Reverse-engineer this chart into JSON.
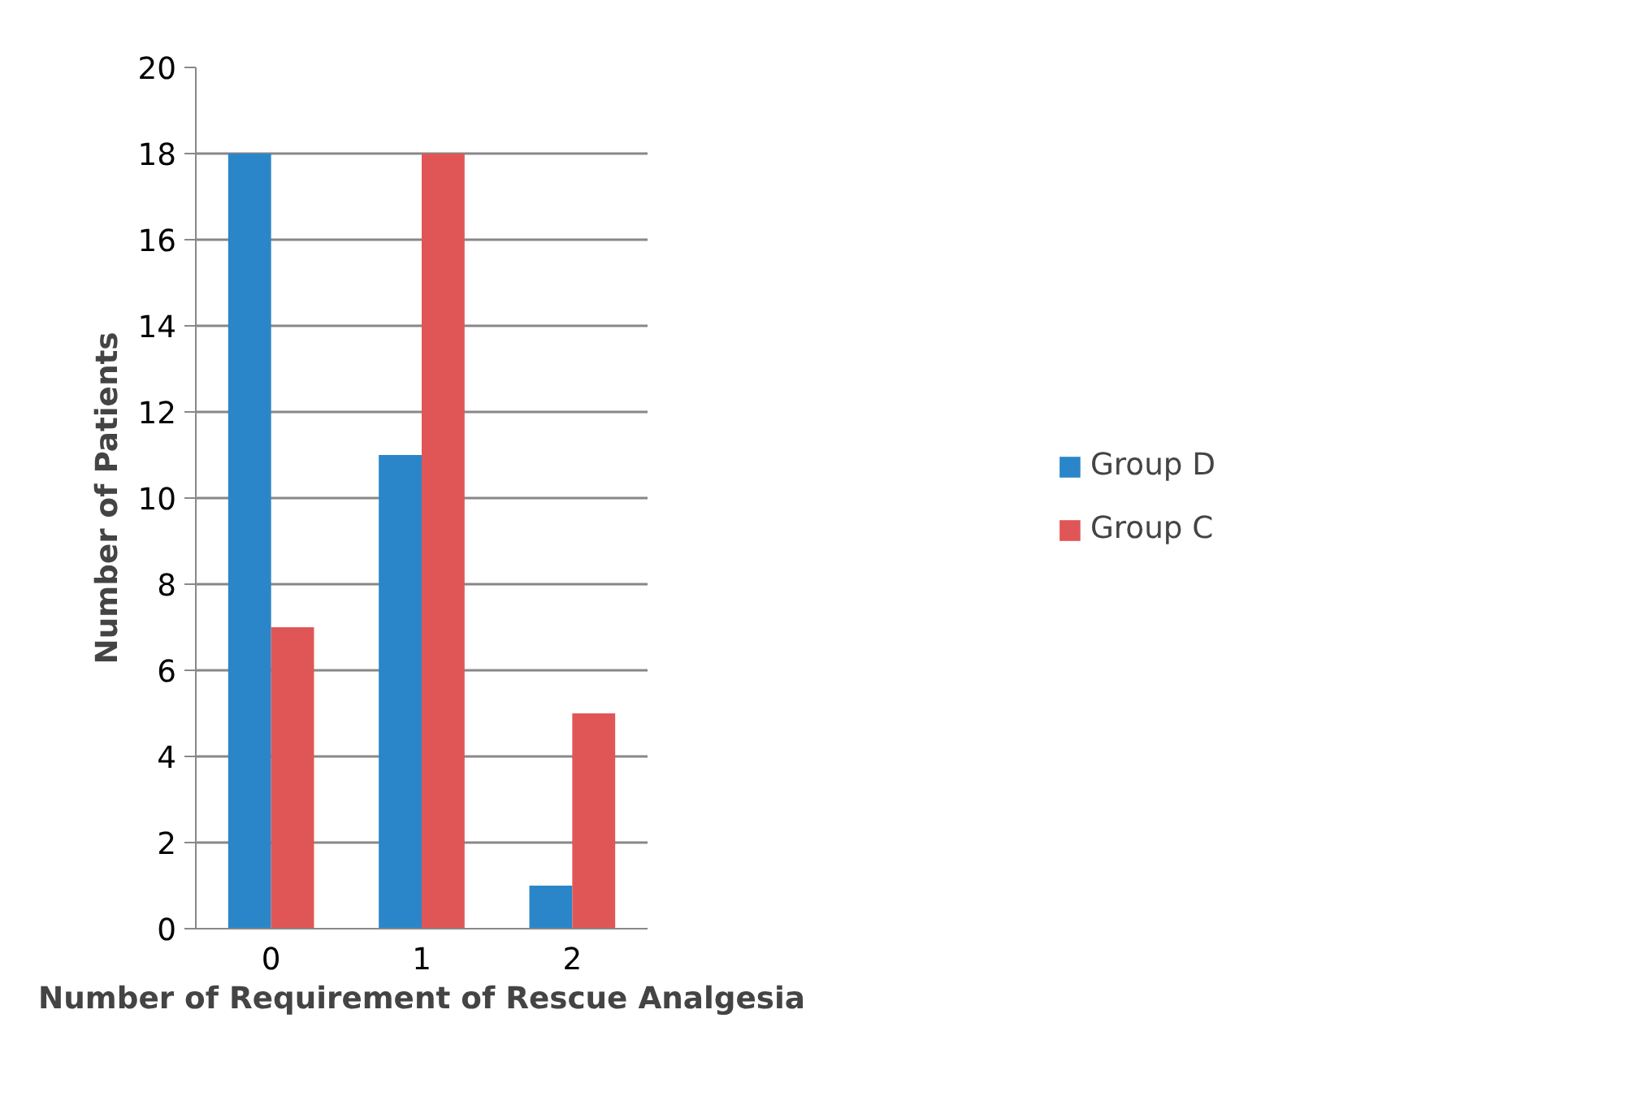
{
  "chart_data": {
    "type": "bar",
    "xlabel": "Number of Requirement of Rescue Analgesia",
    "ylabel": "Number of Patients",
    "categories": [
      "0",
      "1",
      "2"
    ],
    "series": [
      {
        "name": "Group D",
        "color": "#2a86c8",
        "values": [
          18,
          11,
          1
        ]
      },
      {
        "name": "Group C",
        "color": "#e05656",
        "values": [
          7,
          18,
          5
        ]
      }
    ],
    "ylim": [
      0,
      20
    ],
    "yticks": [
      0,
      2,
      4,
      6,
      8,
      10,
      12,
      14,
      16,
      18,
      20
    ],
    "grid": "y",
    "legend": "right"
  }
}
